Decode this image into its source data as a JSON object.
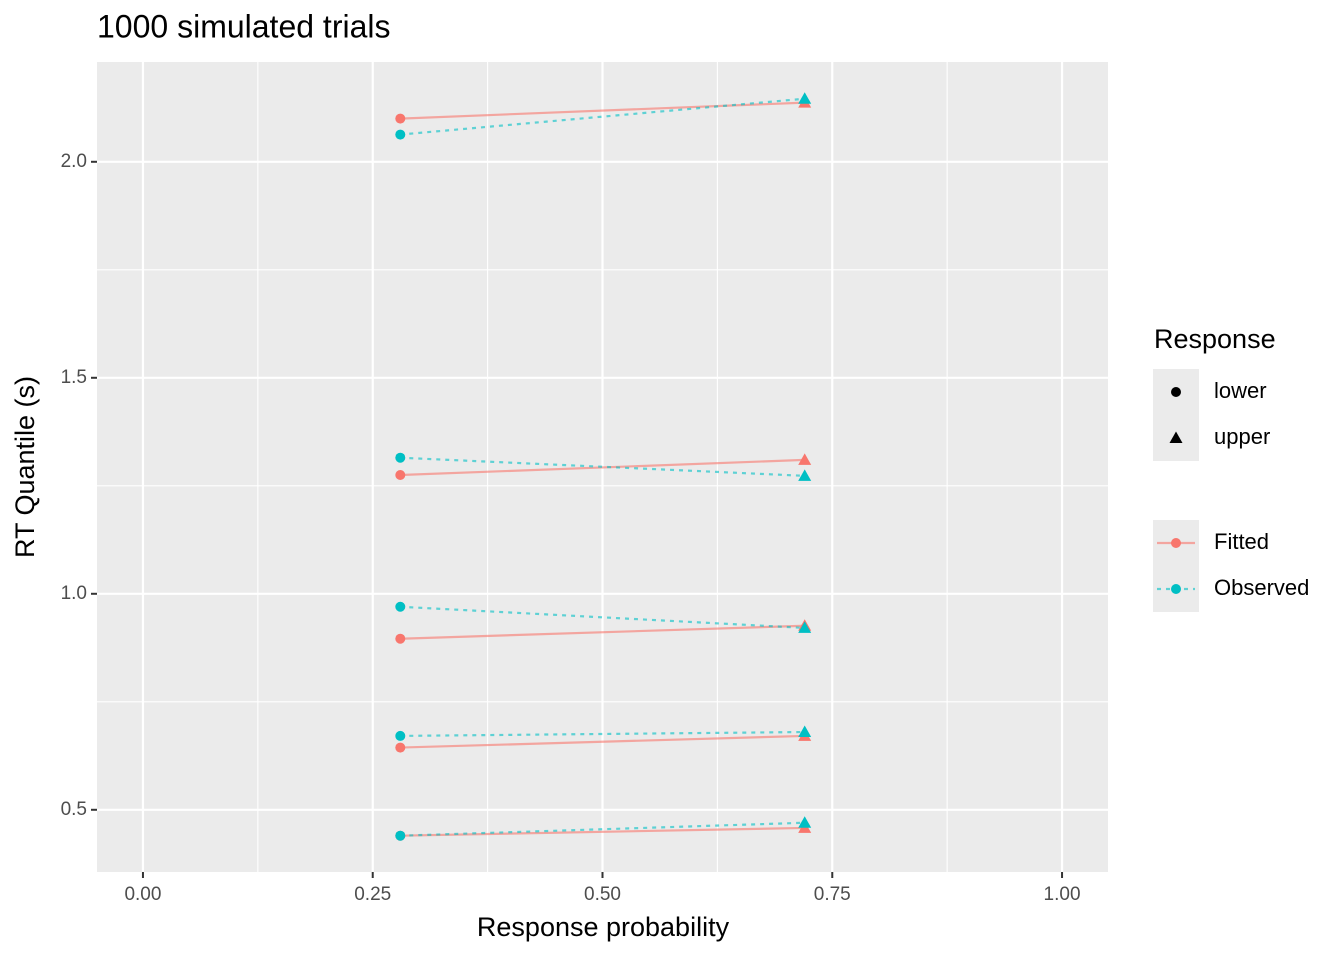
{
  "chart_data": {
    "type": "quantile-probability",
    "title": "1000 simulated trials",
    "x_label": "Response probability",
    "y_label": "RT Quantile (s)",
    "xlim": [
      -0.05,
      1.05
    ],
    "ylim": [
      0.356,
      2.231
    ],
    "xticks": [
      {
        "value": 0,
        "label": "0.00"
      },
      {
        "value": 0.25,
        "label": "0.25"
      },
      {
        "value": 0.5,
        "label": "0.50"
      },
      {
        "value": 0.75,
        "label": "0.75"
      },
      {
        "value": 1,
        "label": "1.00"
      }
    ],
    "yticks": [
      0.5,
      {
        "value": 1,
        "label": "1.0"
      },
      1.5,
      {
        "value": 2,
        "label": "2.0"
      }
    ],
    "xminorticks": [
      0.125,
      0.375,
      0.625,
      0.875
    ],
    "yminorticks": [
      0.75,
      1.25,
      1.75
    ],
    "grid": true,
    "shape_legend_title": "Response",
    "responses": [
      {
        "name": "lower",
        "shape": "circle",
        "x": 0.28
      },
      {
        "name": "upper",
        "shape": "triangle",
        "x": 0.72
      }
    ],
    "series": [
      {
        "name": "Fitted",
        "color": "#F8766D",
        "dashed": false,
        "values": [
          [
            2.1,
            1.275,
            0.896,
            0.644,
            0.44
          ],
          [
            2.137,
            1.31,
            0.926,
            0.671,
            0.458
          ]
        ]
      },
      {
        "name": "Observed",
        "color": "#00BFC4",
        "dashed": true,
        "values": [
          [
            2.063,
            1.315,
            0.97,
            0.671,
            0.44
          ],
          [
            2.146,
            1.273,
            0.921,
            0.68,
            0.47
          ]
        ]
      }
    ]
  }
}
